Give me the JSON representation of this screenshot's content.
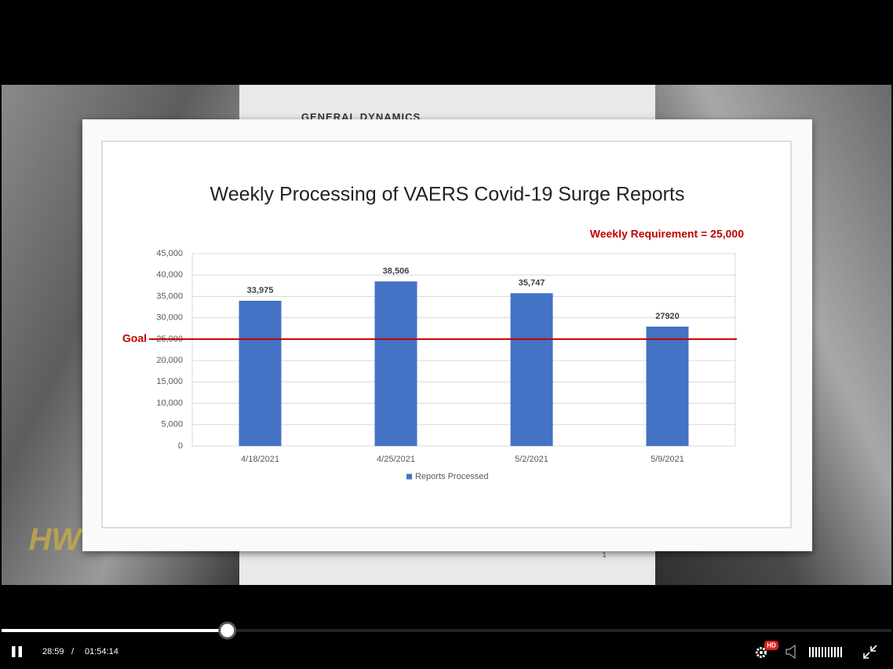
{
  "chart_data": {
    "type": "bar",
    "title": "Weekly Processing of VAERS Covid-19 Surge Reports",
    "annotation": "Weekly Requirement = 25,000",
    "categories": [
      "4/18/2021",
      "4/25/2021",
      "5/2/2021",
      "5/9/2021"
    ],
    "series": [
      {
        "name": "Reports Processed",
        "color": "#4472c4",
        "values": [
          33975,
          38506,
          35747,
          27920
        ],
        "value_labels": [
          "33,975",
          "38,506",
          "35,747",
          "27920"
        ]
      }
    ],
    "goal_line": {
      "value": 25000,
      "label": "Goal",
      "color": "#c00000"
    },
    "ylim": [
      0,
      45000
    ],
    "yticks": [
      0,
      {
        "value": 5000,
        "label": "5,000"
      },
      {
        "value": 10000,
        "label": "10,000"
      },
      {
        "value": 15000,
        "label": "15,000"
      },
      {
        "value": 20000,
        "label": "20,000"
      },
      {
        "value": 25000,
        "label": "25,000"
      },
      {
        "value": 30000,
        "label": "30,000"
      },
      {
        "value": 35000,
        "label": "35,000"
      },
      {
        "value": 40000,
        "label": "40,000"
      },
      {
        "value": 45000,
        "label": "45,000"
      }
    ],
    "grid": true,
    "legend": "bottom"
  },
  "document": {
    "header": "GENERAL DYNAMICS",
    "page_number": "1"
  },
  "logo": "HW",
  "player": {
    "current_time": "28:59",
    "time_separator": "/",
    "duration": "01:54:14",
    "quality_badge": "HD"
  }
}
